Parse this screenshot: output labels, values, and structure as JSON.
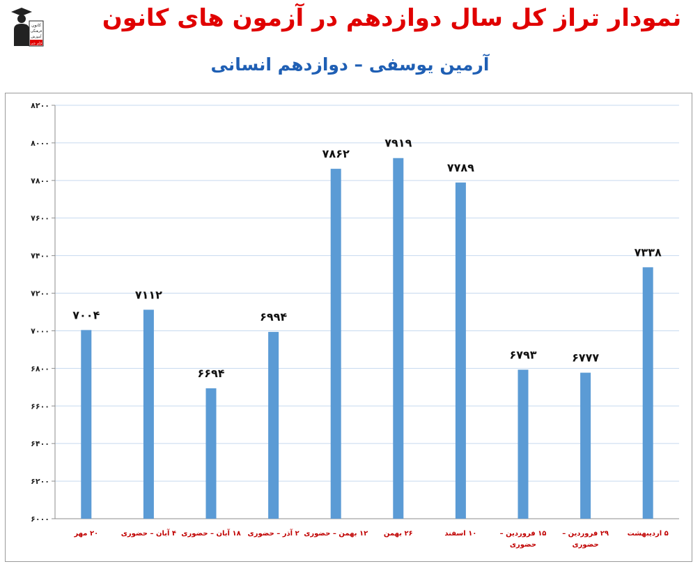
{
  "header": {
    "title": "نمودار تراز کل سال دوازدهم در آزمون های کانون",
    "subtitle": "آرمین یوسفی – دوازدهم انسانی",
    "logo_lines": [
      "کانون",
      "فرهنگی",
      "آموزش",
      "قلم چی"
    ]
  },
  "colors": {
    "title": "#e00000",
    "subtitle": "#1f5fb4",
    "bar": "#5b9bd5",
    "gridline": "#c6d9ef",
    "xlabel": "#c00000"
  },
  "chart_data": {
    "type": "bar",
    "title": "نمودار تراز کل سال دوازدهم در آزمون های کانون",
    "subtitle": "آرمین یوسفی – دوازدهم انسانی",
    "xlabel": "",
    "ylabel": "",
    "ylim": [
      6000,
      8200
    ],
    "yticks": [
      6000,
      6200,
      6400,
      6600,
      6800,
      7000,
      7200,
      7400,
      7600,
      7800,
      8000,
      8200
    ],
    "ytick_labels": [
      "۶۰۰۰",
      "۶۲۰۰",
      "۶۴۰۰",
      "۶۶۰۰",
      "۶۸۰۰",
      "۷۰۰۰",
      "۷۲۰۰",
      "۷۴۰۰",
      "۷۶۰۰",
      "۷۸۰۰",
      "۸۰۰۰",
      "۸۲۰۰"
    ],
    "grid": true,
    "legend": "none",
    "categories": [
      [
        "۲۰ مهر"
      ],
      [
        "۴ آبان – حضوری"
      ],
      [
        "۱۸ آبان – حضوری"
      ],
      [
        "۲ آذر – حضوری"
      ],
      [
        "۱۲ بهمن – حضوری"
      ],
      [
        "۲۶ بهمن"
      ],
      [
        "۱۰ اسفند"
      ],
      [
        "۱۵ فروردین –",
        "حضوری"
      ],
      [
        "۲۹ فروردین –",
        "حضوری"
      ],
      [
        "۵ اردیبهشت"
      ]
    ],
    "values": [
      7004,
      7112,
      6694,
      6994,
      7862,
      7919,
      7789,
      6793,
      6777,
      7338
    ],
    "data_labels": [
      "۷۰۰۴",
      "۷۱۱۲",
      "۶۶۹۴",
      "۶۹۹۴",
      "۷۸۶۲",
      "۷۹۱۹",
      "۷۷۸۹",
      "۶۷۹۳",
      "۶۷۷۷",
      "۷۳۳۸"
    ]
  }
}
